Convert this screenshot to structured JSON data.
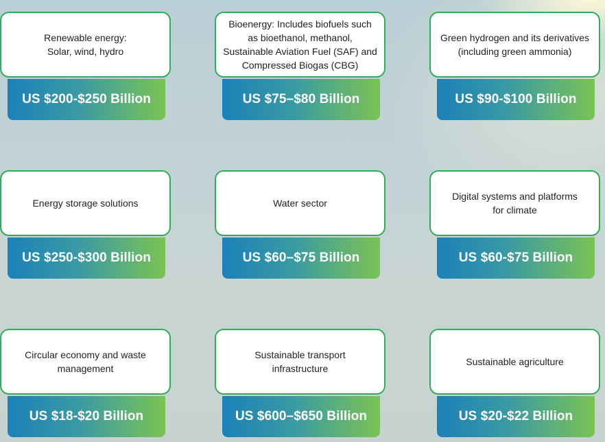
{
  "colors": {
    "card_border": "#2fae58",
    "value_gradient_start": "#1b81b8",
    "value_gradient_end": "#7bc354",
    "value_text": "#ffffff",
    "label_text": "#222222"
  },
  "cards": [
    {
      "label": "Renewable energy:\nSolar, wind, hydro",
      "value": "US $200-$250 Billion"
    },
    {
      "label": "Bioenergy: Includes biofuels such\nas bioethanol, methanol,\nSustainable Aviation Fuel (SAF) and\nCompressed Biogas (CBG)",
      "value": "US $75–$80 Billion"
    },
    {
      "label": "Green hydrogen and its derivatives\n(including green ammonia)",
      "value": "US $90-$100 Billion"
    },
    {
      "label": "Energy storage solutions",
      "value": "US $250-$300 Billion"
    },
    {
      "label": "Water sector",
      "value": "US $60–$75 Billion"
    },
    {
      "label": "Digital systems and platforms\nfor climate",
      "value": "US $60-$75 Billion"
    },
    {
      "label": "Circular economy and waste\nmanagement",
      "value": "US $18-$20 Billion"
    },
    {
      "label": "Sustainable transport\ninfrastructure",
      "value": "US $600–$650 Billion"
    },
    {
      "label": "Sustainable agriculture",
      "value": "US $20-$22 Billion"
    }
  ]
}
